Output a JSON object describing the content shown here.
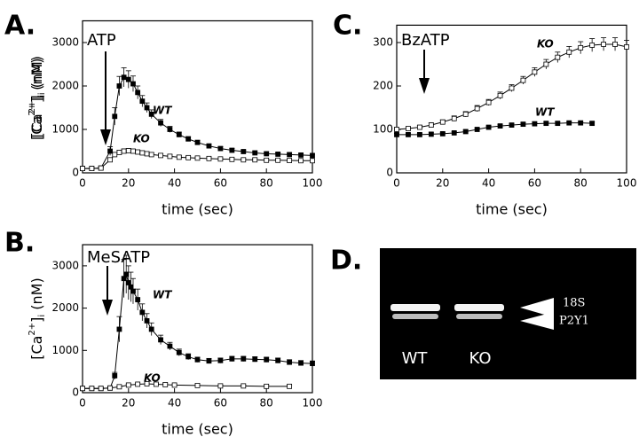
{
  "chart_data": [
    {
      "type": "line",
      "label": "A.",
      "title": "ATP",
      "x_label": "time (sec)",
      "y_label": {
        "open": "[Ca",
        "sup": "2+",
        "close": "]",
        "sub": "i",
        "unit": " (nM)"
      },
      "xlim": [
        0,
        100
      ],
      "xticks": [
        0,
        20,
        40,
        60,
        80,
        100
      ],
      "ylim": [
        0,
        3500
      ],
      "yticks": [
        0,
        1000,
        2000,
        3000
      ],
      "series": [
        {
          "name": "WT",
          "color": "#000000",
          "marker": "filled",
          "x": [
            0,
            4,
            8,
            12,
            14,
            16,
            18,
            20,
            22,
            24,
            26,
            28,
            30,
            34,
            38,
            42,
            46,
            50,
            55,
            60,
            65,
            70,
            75,
            80,
            85,
            90,
            95,
            100
          ],
          "values": [
            100,
            100,
            110,
            500,
            1300,
            2000,
            2200,
            2150,
            2050,
            1850,
            1650,
            1500,
            1350,
            1150,
            1000,
            880,
            780,
            700,
            620,
            560,
            520,
            490,
            460,
            440,
            430,
            420,
            410,
            400
          ],
          "errors": [
            20,
            20,
            20,
            100,
            200,
            220,
            220,
            200,
            180,
            150,
            130,
            110,
            100,
            80,
            70,
            60,
            55,
            50,
            45,
            40,
            40,
            35,
            35,
            30,
            30,
            30,
            30,
            30
          ]
        },
        {
          "name": "KO",
          "color": "#000000",
          "marker": "open",
          "x": [
            0,
            4,
            8,
            12,
            14,
            16,
            18,
            20,
            22,
            24,
            26,
            28,
            30,
            34,
            38,
            42,
            46,
            50,
            55,
            60,
            65,
            70,
            75,
            80,
            85,
            90,
            95,
            100
          ],
          "values": [
            100,
            100,
            110,
            300,
            420,
            470,
            500,
            510,
            500,
            480,
            460,
            440,
            420,
            400,
            380,
            360,
            350,
            340,
            330,
            320,
            310,
            300,
            300,
            290,
            290,
            285,
            280,
            280
          ],
          "errors": [
            20,
            20,
            20,
            40,
            50,
            50,
            50,
            50,
            45,
            40,
            40,
            35,
            35,
            30,
            30,
            30,
            30,
            25,
            25,
            25,
            25,
            25,
            25,
            25,
            25,
            25,
            25,
            25
          ]
        }
      ]
    },
    {
      "type": "line",
      "label": "B.",
      "title": "MeSATP",
      "x_label": "time (sec)",
      "y_label": {
        "open": "[Ca",
        "sup": "2+",
        "close": "]",
        "sub": "i",
        "unit": " (nM)"
      },
      "xlim": [
        0,
        100
      ],
      "xticks": [
        0,
        20,
        40,
        60,
        80,
        100
      ],
      "ylim": [
        0,
        3500
      ],
      "yticks": [
        0,
        1000,
        2000,
        3000
      ],
      "series": [
        {
          "name": "WT",
          "color": "#000000",
          "marker": "filled",
          "x": [
            0,
            4,
            8,
            12,
            14,
            16,
            18,
            19,
            20,
            21,
            22,
            24,
            26,
            28,
            30,
            34,
            38,
            42,
            46,
            50,
            55,
            60,
            65,
            70,
            75,
            80,
            85,
            90,
            95,
            100
          ],
          "values": [
            100,
            100,
            100,
            110,
            400,
            1500,
            2700,
            2800,
            2600,
            2500,
            2400,
            2200,
            1900,
            1700,
            1500,
            1250,
            1100,
            950,
            850,
            780,
            750,
            760,
            800,
            800,
            790,
            780,
            760,
            720,
            700,
            690
          ],
          "errors": [
            20,
            20,
            20,
            30,
            80,
            300,
            450,
            450,
            400,
            350,
            300,
            250,
            200,
            170,
            150,
            110,
            90,
            80,
            70,
            60,
            60,
            60,
            60,
            60,
            60,
            60,
            60,
            60,
            60,
            60
          ]
        },
        {
          "name": "KO",
          "color": "#000000",
          "marker": "open",
          "x": [
            0,
            4,
            8,
            12,
            16,
            20,
            24,
            28,
            32,
            36,
            40,
            50,
            60,
            70,
            80,
            90
          ],
          "values": [
            100,
            100,
            100,
            110,
            140,
            180,
            200,
            210,
            200,
            190,
            180,
            170,
            160,
            160,
            150,
            150
          ],
          "errors": [
            15,
            15,
            15,
            15,
            20,
            20,
            25,
            25,
            25,
            20,
            20,
            20,
            20,
            20,
            20,
            20
          ]
        }
      ]
    },
    {
      "type": "line",
      "label": "C.",
      "title": "BzATP",
      "x_label": "time (sec)",
      "y_label": {
        "open": "[Ca",
        "sup": "2+",
        "close": "]",
        "sub": "i",
        "unit": " (nM)"
      },
      "xlim": [
        0,
        100
      ],
      "xticks": [
        0,
        20,
        40,
        60,
        80,
        100
      ],
      "ylim": [
        0,
        340
      ],
      "yticks": [
        0,
        100,
        200,
        300
      ],
      "series": [
        {
          "name": "WT",
          "color": "#000000",
          "marker": "filled",
          "x": [
            0,
            5,
            10,
            15,
            20,
            25,
            30,
            35,
            40,
            45,
            50,
            55,
            60,
            65,
            70,
            75,
            80,
            85
          ],
          "values": [
            88,
            88,
            88,
            89,
            90,
            92,
            95,
            100,
            105,
            108,
            110,
            112,
            113,
            114,
            114,
            115,
            115,
            114
          ],
          "errors": [
            3,
            3,
            3,
            3,
            3,
            3,
            3,
            3,
            3,
            3,
            3,
            3,
            3,
            3,
            3,
            3,
            3,
            3
          ]
        },
        {
          "name": "KO",
          "color": "#000000",
          "marker": "open",
          "x": [
            0,
            5,
            10,
            15,
            20,
            25,
            30,
            35,
            40,
            45,
            50,
            55,
            60,
            65,
            70,
            75,
            80,
            85,
            90,
            95,
            100
          ],
          "values": [
            100,
            102,
            105,
            110,
            117,
            125,
            135,
            148,
            162,
            178,
            195,
            213,
            232,
            250,
            266,
            278,
            288,
            294,
            296,
            296,
            290
          ],
          "errors": [
            4,
            4,
            4,
            5,
            5,
            6,
            6,
            7,
            7,
            8,
            8,
            9,
            10,
            11,
            12,
            13,
            14,
            15,
            15,
            15,
            15
          ]
        }
      ]
    }
  ],
  "gel": {
    "label": "D.",
    "lanes": [
      "WT",
      "KO"
    ],
    "bands": [
      "18S",
      "P2Y1"
    ]
  }
}
